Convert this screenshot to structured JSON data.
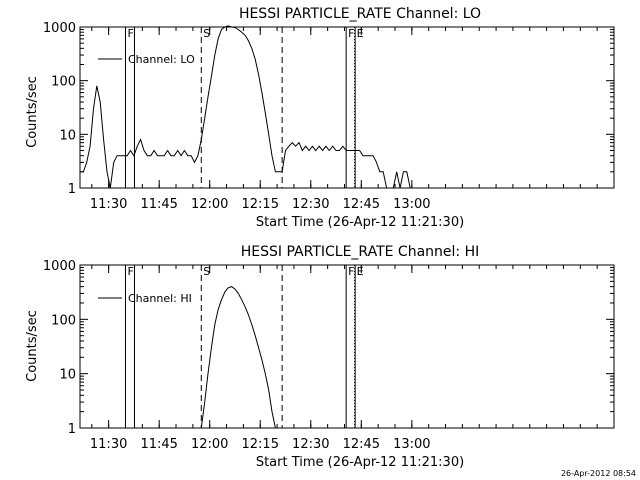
{
  "footer": {
    "timestamp": "26-Apr-2012 08:54"
  },
  "chart_data": [
    {
      "type": "line",
      "title": "HESSI PARTICLE_RATE Channel: LO",
      "xlabel": "Start Time (26-Apr-12 11:21:30)",
      "ylabel": "Counts/sec",
      "yscale": "log",
      "ylim": [
        1,
        1000
      ],
      "xlim_minutes": [
        0,
        158.5
      ],
      "x_tick_labels": [
        "11:30",
        "11:45",
        "12:00",
        "12:15",
        "12:30",
        "12:45",
        "13:00"
      ],
      "x_ticks_minutes": [
        8.5,
        23.5,
        38.5,
        53.5,
        68.5,
        83.5,
        98.5
      ],
      "y_tick_labels": [
        "1",
        "10",
        "100",
        "1000"
      ],
      "y_ticks": [
        1,
        10,
        100,
        1000
      ],
      "legend": "top-left",
      "series": [
        {
          "name": "Channel: LO",
          "x": [
            0,
            1,
            2,
            3,
            4,
            5,
            6,
            7,
            8,
            9,
            10,
            11,
            12,
            13,
            14,
            15,
            16,
            17,
            18,
            19,
            20,
            21,
            22,
            23,
            24,
            25,
            26,
            27,
            28,
            29,
            30,
            31,
            32,
            33,
            34,
            35,
            36,
            37,
            38,
            39,
            40,
            41,
            42,
            43,
            44,
            45,
            46,
            47,
            48,
            49,
            50,
            51,
            52,
            53,
            54,
            55,
            56,
            57,
            58,
            59,
            60,
            61,
            62,
            63,
            64,
            65,
            66,
            67,
            68,
            69,
            70,
            71,
            72,
            73,
            74,
            75,
            76,
            77,
            78,
            79,
            80,
            81,
            82,
            83,
            84,
            85,
            86,
            87,
            88,
            89,
            90,
            91,
            92,
            93,
            94,
            95,
            96,
            97,
            98,
            99
          ],
          "values": [
            2,
            2,
            3,
            6,
            30,
            80,
            40,
            8,
            2,
            1,
            3,
            4,
            4,
            4,
            4,
            5,
            4,
            6,
            8,
            5,
            4,
            4,
            5,
            4,
            4,
            4,
            5,
            4,
            4,
            5,
            4,
            5,
            4,
            4,
            3,
            4,
            8,
            20,
            50,
            120,
            300,
            600,
            900,
            1000,
            1050,
            1000,
            980,
            900,
            800,
            700,
            550,
            400,
            250,
            130,
            60,
            25,
            10,
            4,
            2,
            2,
            2,
            5,
            6,
            7,
            6,
            7,
            5,
            6,
            5,
            6,
            5,
            6,
            5,
            6,
            5,
            6,
            5,
            5,
            6,
            5,
            5,
            5,
            5,
            5,
            4,
            4,
            4,
            4,
            3,
            2,
            2,
            1,
            1,
            1,
            2,
            1,
            2,
            2,
            1,
            1
          ]
        }
      ],
      "markers": [
        {
          "label": "F",
          "x_minutes": 13.5,
          "style": "solid"
        },
        {
          "label": "S",
          "x_minutes": 36,
          "style": "dashed"
        },
        {
          "label": "",
          "x_minutes": 60,
          "style": "dashed"
        },
        {
          "label": "F",
          "x_minutes": 79,
          "style": "solid"
        },
        {
          "label": "E",
          "x_minutes": 81.5,
          "style": "dotted"
        }
      ]
    },
    {
      "type": "line",
      "title": "HESSI PARTICLE_RATE Channel: HI",
      "xlabel": "Start Time (26-Apr-12 11:21:30)",
      "ylabel": "Counts/sec",
      "yscale": "log",
      "ylim": [
        1,
        1000
      ],
      "xlim_minutes": [
        0,
        158.5
      ],
      "x_tick_labels": [
        "11:30",
        "11:45",
        "12:00",
        "12:15",
        "12:30",
        "12:45",
        "13:00"
      ],
      "x_ticks_minutes": [
        8.5,
        23.5,
        38.5,
        53.5,
        68.5,
        83.5,
        98.5
      ],
      "y_tick_labels": [
        "1",
        "10",
        "100",
        "1000"
      ],
      "y_ticks": [
        1,
        10,
        100,
        1000
      ],
      "legend": "top-left",
      "series": [
        {
          "name": "Channel: HI",
          "x": [
            36,
            37,
            38,
            39,
            40,
            41,
            42,
            43,
            44,
            45,
            46,
            47,
            48,
            49,
            50,
            51,
            52,
            53,
            54,
            55,
            56,
            57,
            58
          ],
          "values": [
            1,
            3,
            10,
            30,
            80,
            150,
            230,
            320,
            380,
            400,
            360,
            300,
            230,
            170,
            120,
            80,
            50,
            30,
            18,
            10,
            5,
            2,
            1
          ]
        }
      ],
      "markers": [
        {
          "label": "F",
          "x_minutes": 13.5,
          "style": "solid"
        },
        {
          "label": "S",
          "x_minutes": 36,
          "style": "dashed"
        },
        {
          "label": "",
          "x_minutes": 60,
          "style": "dashed"
        },
        {
          "label": "F",
          "x_minutes": 79,
          "style": "solid"
        },
        {
          "label": "E",
          "x_minutes": 81.5,
          "style": "dotted"
        }
      ]
    }
  ]
}
